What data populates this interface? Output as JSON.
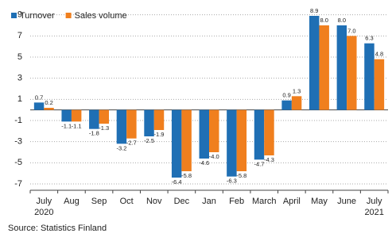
{
  "chart_data": {
    "type": "bar",
    "categories": [
      "July 2020",
      "Aug",
      "Sep",
      "Oct",
      "Nov",
      "Dec",
      "Jan",
      "Feb",
      "March",
      "April",
      "May",
      "June",
      "July 2021"
    ],
    "series": [
      {
        "name": "Turnover",
        "color": "#1f6fb4",
        "values": [
          0.7,
          -1.1,
          -1.8,
          -3.2,
          -2.5,
          -6.4,
          -4.6,
          -6.3,
          -4.7,
          0.9,
          8.9,
          8.0,
          6.3
        ],
        "value_labels": [
          "0.7",
          "-1.1",
          "-1.8",
          "-3.2",
          "-2.5",
          "-6.4",
          "-4.6",
          "-6.3",
          "-4.7",
          "0.9",
          "8.9",
          "8.0",
          "6.3"
        ]
      },
      {
        "name": "Sales volume",
        "color": "#f07f1e",
        "values": [
          0.2,
          -1.1,
          -1.3,
          -2.7,
          -1.9,
          -5.8,
          -4.0,
          -5.8,
          -4.3,
          1.3,
          8.0,
          7.0,
          4.8
        ],
        "value_labels": [
          "0.2",
          "-1.1",
          "-1.3",
          "-2.7",
          "-1.9",
          "-5.8",
          "-4.0",
          "-5.8",
          "-4.3",
          "1.3",
          "8.0",
          "7.0",
          "4.8"
        ]
      }
    ],
    "ylim": [
      -7.6,
      9.8
    ],
    "yticks": [
      -7,
      -5,
      -3,
      -1,
      1,
      3,
      5,
      7,
      9
    ],
    "grid": true,
    "legend": "top-left",
    "source": "Source: Statistics Finland"
  }
}
